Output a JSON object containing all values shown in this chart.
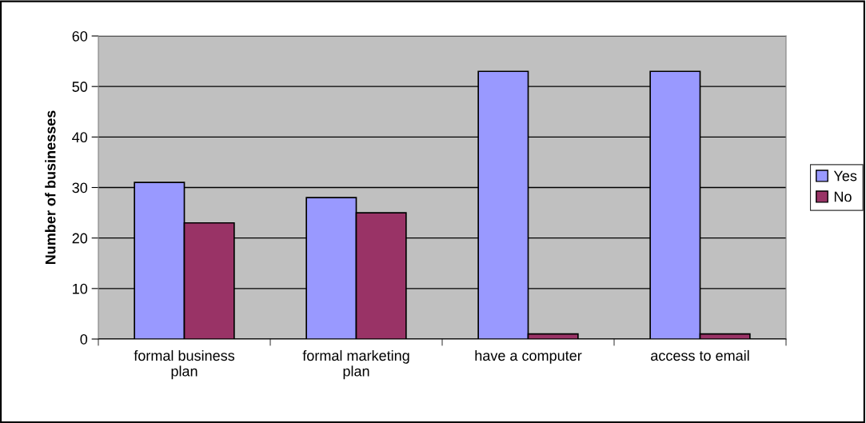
{
  "chart_data": {
    "type": "bar",
    "ylabel": "Number of businesses",
    "categories": [
      "formal business\nplan",
      "formal marketing\nplan",
      "have a computer",
      "access to email"
    ],
    "series": [
      {
        "name": "Yes",
        "color": "#9999ff",
        "values": [
          31,
          28,
          53,
          53
        ]
      },
      {
        "name": "No",
        "color": "#993366",
        "values": [
          23,
          25,
          1,
          1
        ]
      }
    ],
    "ylim": [
      0,
      60
    ],
    "yticks": [
      0,
      10,
      20,
      30,
      40,
      50,
      60
    ],
    "grid": "y",
    "legend": "right"
  }
}
